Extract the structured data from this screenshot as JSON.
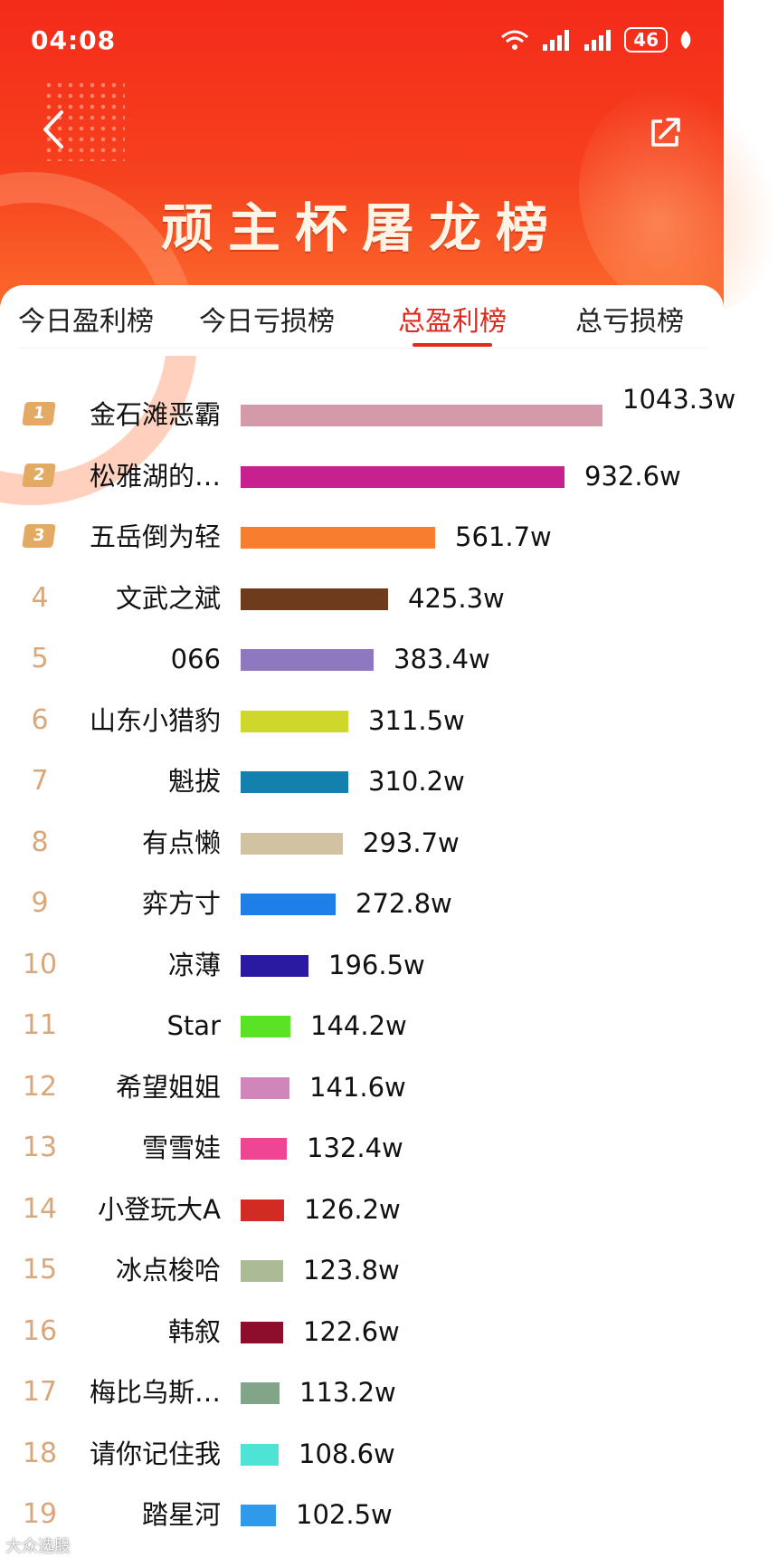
{
  "status": {
    "time": "04:08",
    "battery": "46"
  },
  "header": {
    "title": "顽主杯屠龙榜"
  },
  "tabs": [
    {
      "label": "今日盈利榜",
      "active": false
    },
    {
      "label": "今日亏损榜",
      "active": false
    },
    {
      "label": "总盈利榜",
      "active": true
    },
    {
      "label": "总亏损榜",
      "active": false
    }
  ],
  "chart_data": {
    "type": "bar",
    "categories": [
      "金石滩恶霸",
      "松雅湖的…",
      "五岳倒为轻",
      "文武之斌",
      "066",
      "山东小猎豹",
      "魁拔",
      "有点懒",
      "弈方寸",
      "凉薄",
      "Star",
      "希望姐姐",
      "雪雪娃",
      "小登玩大A",
      "冰点梭哈",
      "韩叙",
      "梅比乌斯…",
      "请你记住我",
      "踏星河"
    ],
    "values": [
      1043.3,
      932.6,
      561.7,
      425.3,
      383.4,
      311.5,
      310.2,
      293.7,
      272.8,
      196.5,
      144.2,
      141.6,
      132.4,
      126.2,
      123.8,
      122.6,
      113.2,
      108.6,
      102.5
    ],
    "value_labels": [
      "1043.3w",
      "932.6w",
      "561.7w",
      "425.3w",
      "383.4w",
      "311.5w",
      "310.2w",
      "293.7w",
      "272.8w",
      "196.5w",
      "144.2w",
      "141.6w",
      "132.4w",
      "126.2w",
      "123.8w",
      "122.6w",
      "113.2w",
      "108.6w",
      "102.5w"
    ],
    "ranks": [
      "1",
      "2",
      "3",
      "4",
      "5",
      "6",
      "7",
      "8",
      "9",
      "10",
      "11",
      "12",
      "13",
      "14",
      "15",
      "16",
      "17",
      "18",
      "19"
    ],
    "colors": [
      "#d59aa9",
      "#c8208f",
      "#f77d2f",
      "#6e3b1c",
      "#8e78c0",
      "#cfd82a",
      "#1380ae",
      "#d1c3a1",
      "#1f7fe8",
      "#2a1aa3",
      "#5ae225",
      "#d186bb",
      "#f04592",
      "#d22b23",
      "#aabb95",
      "#8c0d2c",
      "#82a589",
      "#4fe3d6",
      "#2f9aea"
    ]
  },
  "watermark": "大众选股"
}
